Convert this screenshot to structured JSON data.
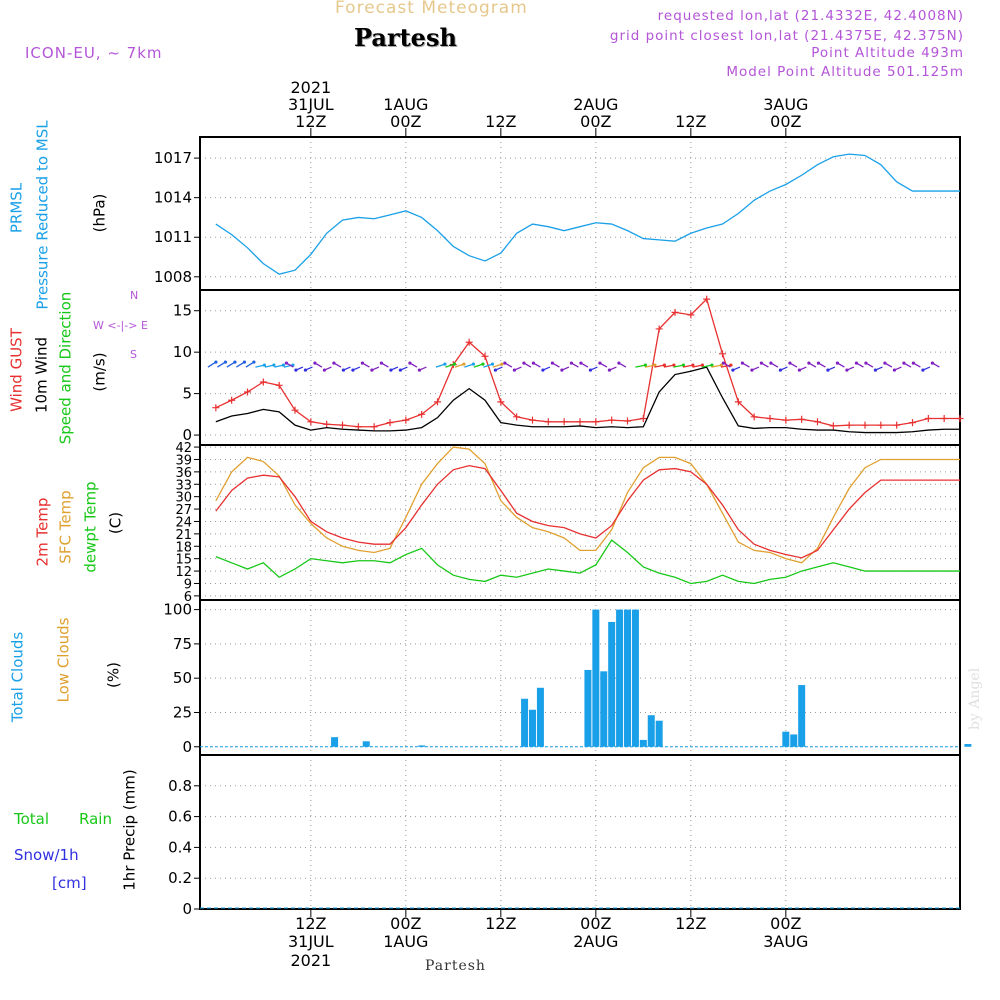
{
  "header": {
    "title": "Forecast Meteogram",
    "location": "Partesh",
    "model": "ICON-EU, ~ 7km",
    "requested": "requested lon,lat (21.4332E, 42.4008N)",
    "gridpoint": "grid point closest lon,lat (21.4375E, 42.375N)",
    "point_alt": "Point Altitude 493m",
    "model_alt": "Model Point Altitude 501.125m"
  },
  "footer": {
    "location": "Partesh",
    "credit": "by Angel"
  },
  "colors": {
    "pressure": "#1aa0e8",
    "gust": "#e83030",
    "wind": "#000000",
    "sfc_temp": "#e0a030",
    "dewpt": "#18c818",
    "temp": "#e83030",
    "clouds": "#1aa0e8",
    "purple": "#b455d8",
    "blue": "#3030e0"
  },
  "time_axis": {
    "top_labels": [
      {
        "line1": "2021",
        "line2": "31JUL",
        "line3": "12Z"
      },
      {
        "line1": "",
        "line2": "1AUG",
        "line3": "00Z"
      },
      {
        "line1": "",
        "line2": "",
        "line3": "12Z"
      },
      {
        "line1": "",
        "line2": "2AUG",
        "line3": "00Z"
      },
      {
        "line1": "",
        "line2": "",
        "line3": "12Z"
      },
      {
        "line1": "",
        "line2": "3AUG",
        "line3": "00Z"
      }
    ],
    "bottom_labels": [
      {
        "line1": "12Z",
        "line2": "31JUL",
        "line3": "2021"
      },
      {
        "line1": "00Z",
        "line2": "1AUG",
        "line3": ""
      },
      {
        "line1": "12Z",
        "line2": "",
        "line3": ""
      },
      {
        "line1": "00Z",
        "line2": "2AUG",
        "line3": ""
      },
      {
        "line1": "12Z",
        "line2": "",
        "line3": ""
      },
      {
        "line1": "00Z",
        "line2": "3AUG",
        "line3": ""
      }
    ]
  },
  "panel_labels": {
    "pressure": {
      "l1": "PRMSL",
      "l2": "Pressure Reduced to MSL",
      "unit": "(hPa)"
    },
    "wind": {
      "l1": "Wind GUST",
      "l2": "10m Wind",
      "l3": "Speed and Direction",
      "unit": "(m/s)",
      "compass_n": "N",
      "compass_s": "S",
      "compass_row": "W <-|-> E"
    },
    "temp": {
      "l1": "2m Temp",
      "l2": "SFC Temp",
      "l3": "dewpt Temp",
      "unit": "(C)"
    },
    "clouds": {
      "l1": "Total Clouds",
      "l2": "Low Clouds",
      "unit": "(%)"
    },
    "precip": {
      "total": "Total",
      "rain": "Rain",
      "snow": "Snow/1h",
      "cm": "[cm]",
      "axis": "1hr Precip (mm)"
    }
  },
  "chart_data": [
    {
      "type": "line",
      "title": "PRMSL Pressure Reduced to MSL",
      "ylabel": "(hPa)",
      "ylim": [
        1007,
        1018.6
      ],
      "yticks": [
        "1008",
        "1011",
        "1014",
        "1017"
      ],
      "x_hours": [
        0,
        2,
        4,
        6,
        8,
        10,
        12,
        14,
        16,
        18,
        20,
        22,
        24,
        26,
        28,
        30,
        32,
        34,
        36,
        38,
        40,
        42,
        44,
        46,
        48,
        50,
        52,
        54,
        56,
        58,
        60,
        62,
        64,
        66,
        68,
        70,
        72,
        74,
        76,
        78,
        80,
        82,
        84,
        86,
        88,
        90,
        92,
        94
      ],
      "series": [
        {
          "name": "PRMSL",
          "values": [
            1012.0,
            1011.2,
            1010.2,
            1009.0,
            1008.2,
            1008.5,
            1009.7,
            1011.3,
            1012.3,
            1012.5,
            1012.4,
            1012.7,
            1013.0,
            1012.5,
            1011.5,
            1010.3,
            1009.6,
            1009.2,
            1009.8,
            1011.3,
            1012.0,
            1011.8,
            1011.5,
            1011.8,
            1012.1,
            1012.0,
            1011.5,
            1010.9,
            1010.8,
            1010.7,
            1011.3,
            1011.7,
            1012.0,
            1012.8,
            1013.8,
            1014.5,
            1015.0,
            1015.7,
            1016.5,
            1017.1,
            1017.3,
            1017.2,
            1016.5,
            1015.2,
            1014.5,
            1014.5,
            1014.5,
            1014.5
          ]
        }
      ]
    },
    {
      "type": "line",
      "title": "Wind GUST / 10m Wind Speed and Direction",
      "ylabel": "(m/s)",
      "ylim": [
        -1.2,
        17.5
      ],
      "yticks": [
        "0",
        "5",
        "10",
        "15"
      ],
      "x_hours": [
        0,
        2,
        4,
        6,
        8,
        10,
        12,
        14,
        16,
        18,
        20,
        22,
        24,
        26,
        28,
        30,
        32,
        34,
        36,
        38,
        40,
        42,
        44,
        46,
        48,
        50,
        52,
        54,
        56,
        58,
        60,
        62,
        64,
        66,
        68,
        70,
        72,
        74,
        76,
        78,
        80,
        82,
        84,
        86,
        88,
        90,
        92,
        94
      ],
      "series": [
        {
          "name": "Wind GUST",
          "values": [
            3.3,
            4.2,
            5.2,
            6.4,
            6.0,
            3.0,
            1.6,
            1.3,
            1.2,
            1.0,
            1.0,
            1.5,
            1.8,
            2.5,
            4.0,
            8.5,
            11.2,
            9.5,
            4.0,
            2.2,
            1.8,
            1.6,
            1.6,
            1.6,
            1.6,
            1.8,
            1.7,
            2.0,
            12.8,
            14.8,
            14.5,
            16.4,
            9.8,
            4.0,
            2.2,
            2.0,
            1.8,
            1.9,
            1.6,
            1.1,
            1.2,
            1.2,
            1.2,
            1.2,
            1.5,
            2.0,
            2.0,
            2.0
          ]
        },
        {
          "name": "10m Wind",
          "values": [
            1.6,
            2.3,
            2.6,
            3.1,
            2.8,
            1.2,
            0.6,
            0.9,
            0.7,
            0.6,
            0.5,
            0.5,
            0.6,
            0.9,
            2.1,
            4.2,
            5.6,
            4.2,
            1.5,
            1.2,
            1.0,
            1.0,
            1.0,
            1.1,
            0.9,
            1.0,
            0.9,
            1.0,
            5.2,
            7.3,
            7.7,
            8.2,
            4.5,
            1.1,
            0.8,
            0.9,
            0.9,
            0.7,
            0.6,
            0.6,
            0.4,
            0.3,
            0.3,
            0.3,
            0.4,
            0.6,
            0.7,
            0.7
          ]
        }
      ],
      "arrow_level": 8.2
    },
    {
      "type": "line",
      "title": "2m Temp / SFC Temp / dewpt Temp",
      "ylabel": "(C)",
      "ylim": [
        5,
        42.5
      ],
      "yticks": [
        "6",
        "9",
        "12",
        "15",
        "18",
        "21",
        "24",
        "27",
        "30",
        "33",
        "36",
        "39",
        "42"
      ],
      "x_hours": [
        0,
        2,
        4,
        6,
        8,
        10,
        12,
        14,
        16,
        18,
        20,
        22,
        24,
        26,
        28,
        30,
        32,
        34,
        36,
        38,
        40,
        42,
        44,
        46,
        48,
        50,
        52,
        54,
        56,
        58,
        60,
        62,
        64,
        66,
        68,
        70,
        72,
        74,
        76,
        78,
        80,
        82,
        84,
        86,
        88,
        90,
        92,
        94
      ],
      "series": [
        {
          "name": "2m Temp",
          "values": [
            26.5,
            31.5,
            34.5,
            35.2,
            34.8,
            30.0,
            24.0,
            21.5,
            20.0,
            19.0,
            18.5,
            18.5,
            22.5,
            28.0,
            33.0,
            36.5,
            37.5,
            36.8,
            31.5,
            26.0,
            24.0,
            23.0,
            22.5,
            21.0,
            20.0,
            23.0,
            29.0,
            34.0,
            36.5,
            36.8,
            36.0,
            33.0,
            28.0,
            22.0,
            18.5,
            17.0,
            16.0,
            15.2,
            17.0,
            22.0,
            27.0,
            31.0,
            34.0,
            34.0,
            34.0,
            34.0,
            34.0,
            34.0
          ]
        },
        {
          "name": "SFC Temp",
          "values": [
            29.0,
            36.0,
            39.5,
            38.5,
            35.0,
            28.0,
            23.5,
            20.0,
            18.0,
            17.0,
            16.5,
            17.5,
            25.0,
            33.0,
            38.0,
            42.0,
            41.5,
            38.0,
            29.0,
            25.0,
            22.5,
            21.5,
            20.0,
            17.0,
            17.0,
            22.0,
            31.0,
            37.0,
            39.5,
            39.5,
            38.0,
            33.0,
            26.0,
            19.0,
            17.0,
            16.5,
            15.0,
            14.0,
            17.5,
            25.0,
            32.0,
            37.0,
            39.0,
            39.0,
            39.0,
            39.0,
            39.0,
            39.0
          ]
        },
        {
          "name": "dewpt Temp",
          "values": [
            15.5,
            14.0,
            12.5,
            14.0,
            10.5,
            12.5,
            15.0,
            14.5,
            14.0,
            14.5,
            14.5,
            14.0,
            16.0,
            17.5,
            13.5,
            11.0,
            10.0,
            9.5,
            11.0,
            10.5,
            11.5,
            12.5,
            12.0,
            11.5,
            13.5,
            19.5,
            16.5,
            13.0,
            11.5,
            10.5,
            9.0,
            9.5,
            11.0,
            9.5,
            9.0,
            10.0,
            10.5,
            12.0,
            13.0,
            14.0,
            13.0,
            12.0,
            12.0,
            12.0,
            12.0,
            12.0,
            12.0,
            12.0
          ]
        }
      ]
    },
    {
      "type": "bar",
      "title": "Total Clouds / Low Clouds",
      "ylabel": "(%)",
      "ylim": [
        -6,
        107
      ],
      "yticks": [
        "0",
        "25",
        "50",
        "75",
        "100"
      ],
      "x_hours": [
        4,
        5,
        6,
        7,
        8,
        9,
        10,
        11,
        12,
        13,
        14,
        15,
        16,
        17,
        18,
        19,
        20,
        21,
        22,
        23,
        24,
        25,
        26,
        27,
        28,
        29,
        30,
        31,
        32,
        33,
        34,
        35,
        36,
        37,
        38,
        39,
        40,
        41,
        42,
        43,
        44,
        45,
        46,
        47,
        48,
        49,
        50,
        51,
        52,
        53,
        54,
        55,
        56,
        57,
        58,
        59,
        60,
        61,
        62,
        63,
        64,
        65,
        66,
        67,
        68,
        69,
        70,
        71,
        72,
        73,
        74,
        75,
        76,
        77,
        78,
        79,
        80,
        81,
        82,
        83,
        84,
        85,
        86,
        87,
        88,
        89,
        90,
        91,
        92,
        93,
        94,
        95
      ],
      "series": [
        {
          "name": "Total Clouds",
          "values": [
            0,
            0,
            0,
            0,
            0,
            0,
            0,
            0,
            0,
            0,
            0,
            7,
            0,
            0,
            0,
            4,
            0,
            0,
            0,
            0,
            0,
            0,
            1,
            0,
            0,
            0,
            0,
            0,
            0,
            0,
            0,
            0,
            0,
            0,
            0,
            35,
            27,
            43,
            0,
            0,
            0,
            0,
            0,
            56,
            100,
            55,
            91,
            100,
            100,
            100,
            5,
            23,
            19,
            0,
            0,
            0,
            0,
            0,
            0,
            0,
            0,
            0,
            0,
            0,
            0,
            0,
            0,
            0,
            11,
            9,
            45,
            0,
            0,
            0,
            0,
            0,
            0,
            0,
            0,
            0,
            0,
            0,
            0,
            0,
            0,
            0,
            0,
            0,
            0,
            0,
            0,
            2
          ]
        }
      ]
    },
    {
      "type": "bar",
      "title": "1hr Precip (mm)",
      "ylabel": "1hr Precip (mm)",
      "ylim": [
        0,
        1.0
      ],
      "yticks": [
        "0",
        "0.2",
        "0.4",
        "0.6",
        "0.8"
      ],
      "series": [
        {
          "name": "Total Rain",
          "values": []
        },
        {
          "name": "Snow/1h",
          "values": []
        }
      ]
    }
  ]
}
